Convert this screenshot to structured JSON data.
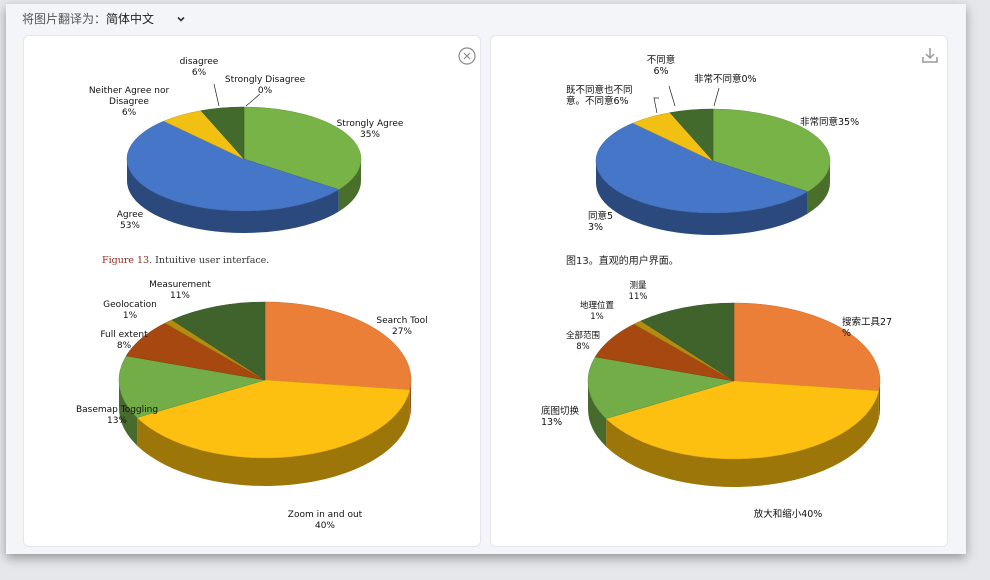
{
  "toolbar": {
    "translate_label": "将图片翻译为：",
    "language_value": "简体中文"
  },
  "icons": {
    "close": "close-circle-icon",
    "download": "download-icon",
    "dropdown": "chevron-down-icon"
  },
  "chart_data": [
    {
      "type": "pie",
      "panel": "original",
      "values": [
        35,
        53,
        6,
        6,
        0
      ],
      "labels": [
        "Strongly Agree\n35%",
        "Agree\n53%",
        "Neither Agree nor\nDisagree\n6%",
        "disagree\n6%",
        "Strongly Disagree\n0%"
      ],
      "colors": [
        "#77b346",
        "#4576c8",
        "#f2c012",
        "#426a2d",
        "#2f5a22"
      ],
      "caption_figure": "Figure 13.",
      "caption_text": "Intuitive user interface."
    },
    {
      "type": "pie",
      "panel": "original",
      "values": [
        27,
        40,
        13,
        8,
        1,
        11
      ],
      "labels": [
        "Search Tool\n27%",
        "Zoom in and out\n40%",
        "Basemap Toggling\n13%",
        "Full extent\n8%",
        "Geolocation\n1%",
        "Measurement\n11%"
      ],
      "colors": [
        "#ec7f37",
        "#fdbf10",
        "#72ad47",
        "#a6480f",
        "#b28b12",
        "#40632c"
      ]
    },
    {
      "type": "pie",
      "panel": "translated",
      "values": [
        35,
        53,
        6,
        6,
        0
      ],
      "labels": [
        "非常同意35%",
        "同意5\n3%",
        "既不同意也不同\n意。不同意6%",
        "不同意\n6%",
        "非常不同意0%"
      ],
      "colors": [
        "#77b346",
        "#4576c8",
        "#f2c012",
        "#426a2d",
        "#2f5a22"
      ],
      "caption_text": "图13。直观的用户界面。"
    },
    {
      "type": "pie",
      "panel": "translated",
      "values": [
        27,
        40,
        13,
        8,
        1,
        11
      ],
      "labels": [
        "搜索工具27\n%",
        "放大和缩小40%",
        "底图切换\n13%",
        "全部范围\n8%",
        "地理位置\n1%",
        "测量\n11%"
      ],
      "colors": [
        "#ec7f37",
        "#fdbf10",
        "#72ad47",
        "#a6480f",
        "#b28b12",
        "#40632c"
      ]
    }
  ]
}
